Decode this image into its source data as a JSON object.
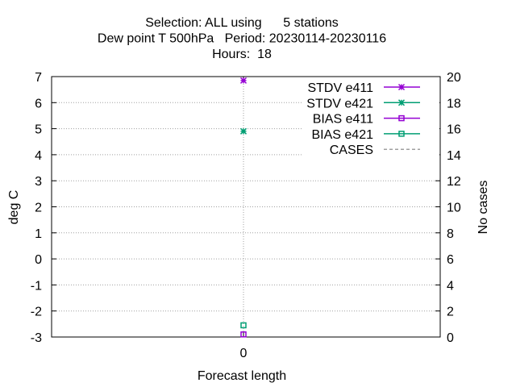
{
  "chart_data": {
    "type": "scatter",
    "title_lines": [
      "Selection: ALL using      5 stations",
      "Dew point T 500hPa   Period: 20230114-20230116",
      "Hours:  18"
    ],
    "xlabel": "Forecast length",
    "ylabel": "deg C",
    "y2label": "No cases",
    "x_ticks": [
      0
    ],
    "ylim": [
      -3,
      7
    ],
    "y_ticks": [
      -3,
      -2,
      -1,
      0,
      1,
      2,
      3,
      4,
      5,
      6,
      7
    ],
    "y2lim": [
      0,
      20
    ],
    "y2_ticks": [
      0,
      2,
      4,
      6,
      8,
      10,
      12,
      14,
      16,
      18,
      20
    ],
    "grid": true,
    "legend_position": "top-right",
    "series": [
      {
        "name": "STDV e411",
        "color": "#9400d3",
        "marker": "star",
        "x": [
          0
        ],
        "y": [
          6.85
        ]
      },
      {
        "name": "STDV e421",
        "color": "#009e73",
        "marker": "star",
        "x": [
          0
        ],
        "y": [
          4.9
        ]
      },
      {
        "name": "BIAS e411",
        "color": "#9400d3",
        "marker": "square",
        "x": [
          0
        ],
        "y": [
          -2.9
        ]
      },
      {
        "name": "BIAS e421",
        "color": "#009e73",
        "marker": "square",
        "x": [
          0
        ],
        "y": [
          -2.55
        ]
      },
      {
        "name": "CASES",
        "color": "#808080",
        "marker": "dashed-line",
        "x": [],
        "y": []
      }
    ]
  }
}
